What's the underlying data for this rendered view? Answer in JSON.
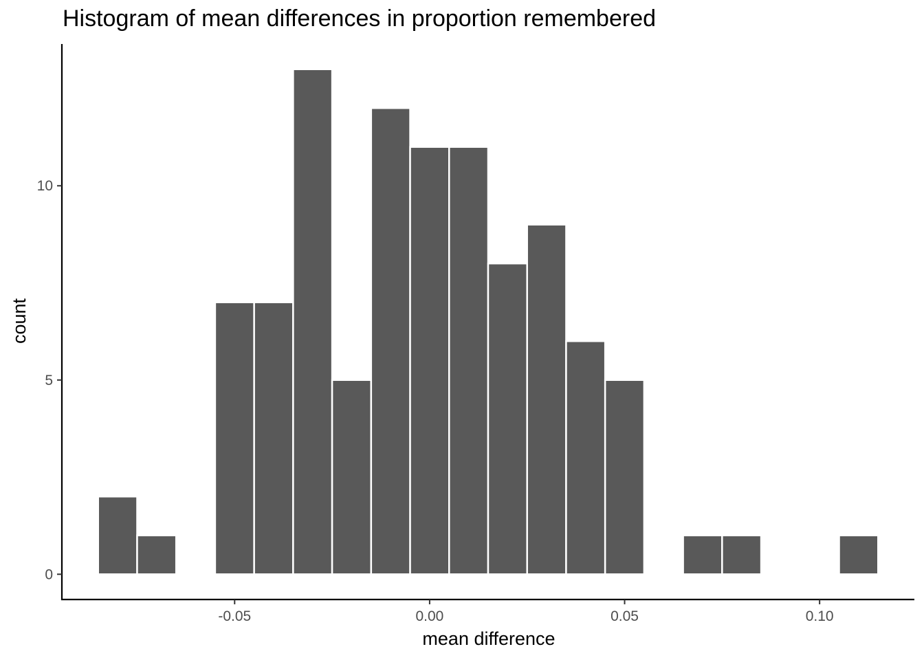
{
  "chart_data": {
    "type": "bar",
    "title": "Histogram of mean differences in proportion remembered",
    "xlabel": "mean difference",
    "ylabel": "count",
    "bin_width": 0.01,
    "bins": [
      {
        "start": -0.085,
        "end": -0.075,
        "count": 2
      },
      {
        "start": -0.075,
        "end": -0.065,
        "count": 1
      },
      {
        "start": -0.055,
        "end": -0.045,
        "count": 7
      },
      {
        "start": -0.045,
        "end": -0.035,
        "count": 7
      },
      {
        "start": -0.035,
        "end": -0.025,
        "count": 13
      },
      {
        "start": -0.025,
        "end": -0.015,
        "count": 5
      },
      {
        "start": -0.015,
        "end": -0.005,
        "count": 12
      },
      {
        "start": -0.005,
        "end": 0.005,
        "count": 11
      },
      {
        "start": 0.005,
        "end": 0.015,
        "count": 11
      },
      {
        "start": 0.015,
        "end": 0.025,
        "count": 8
      },
      {
        "start": 0.025,
        "end": 0.035,
        "count": 9
      },
      {
        "start": 0.035,
        "end": 0.045,
        "count": 6
      },
      {
        "start": 0.045,
        "end": 0.055,
        "count": 5
      },
      {
        "start": 0.065,
        "end": 0.075,
        "count": 1
      },
      {
        "start": 0.075,
        "end": 0.085,
        "count": 1
      },
      {
        "start": 0.105,
        "end": 0.115,
        "count": 1
      }
    ],
    "x_ticks": [
      {
        "value": -0.05,
        "label": "-0.05"
      },
      {
        "value": 0.0,
        "label": "0.00"
      },
      {
        "value": 0.05,
        "label": "0.05"
      },
      {
        "value": 0.1,
        "label": "0.10"
      }
    ],
    "y_ticks": [
      {
        "value": 0,
        "label": "0"
      },
      {
        "value": 5,
        "label": "5"
      },
      {
        "value": 10,
        "label": "10"
      }
    ],
    "xlim": [
      -0.0943,
      0.1243
    ],
    "ylim": [
      -0.65,
      13.65
    ],
    "grid": false,
    "legend": "none",
    "bar_color": "#595959",
    "bar_outline_color": "#ffffff"
  }
}
